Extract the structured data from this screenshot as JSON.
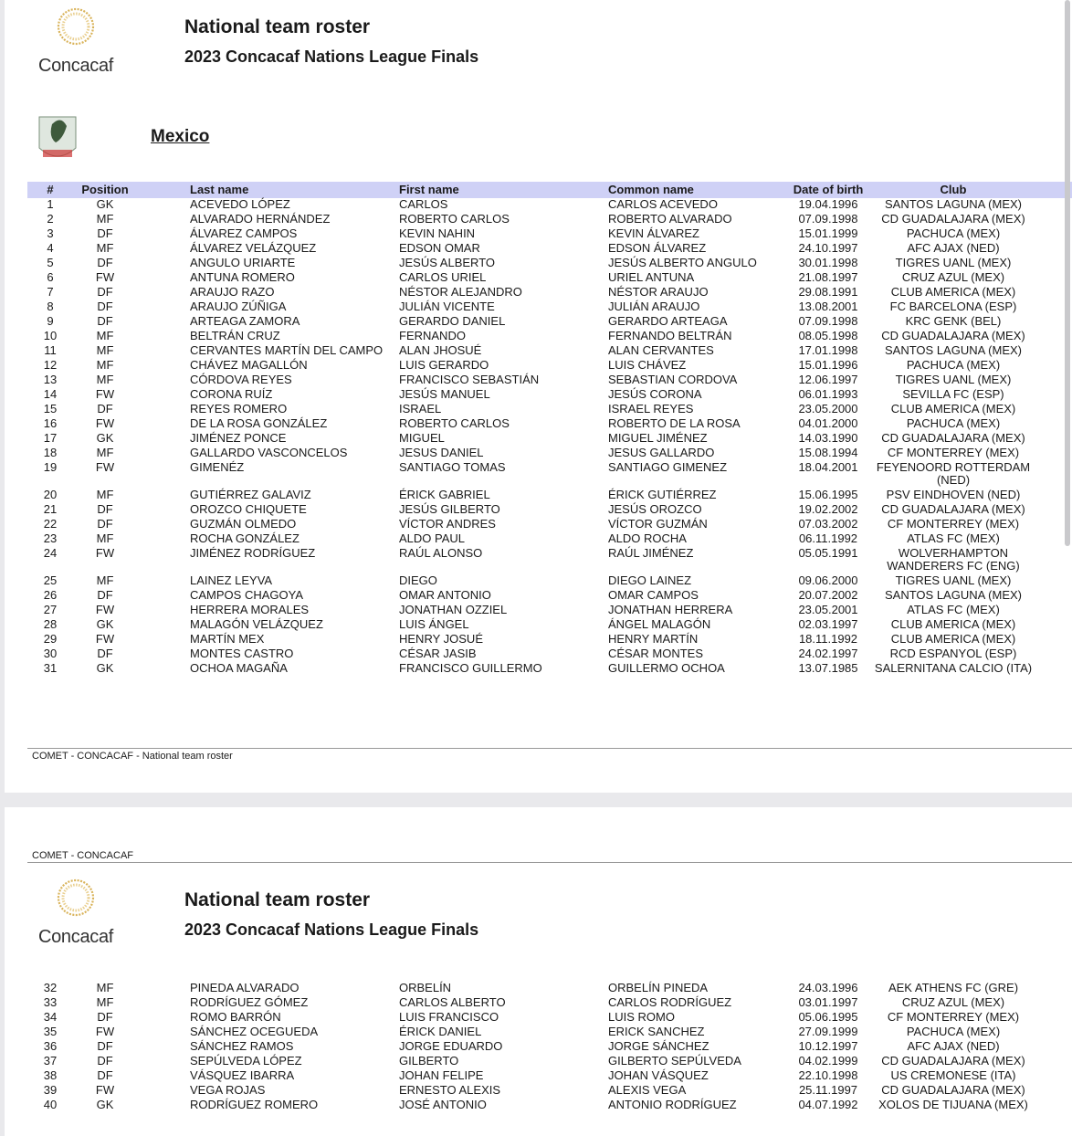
{
  "header": {
    "logo_text": "Concacaf",
    "title": "National team roster",
    "subtitle": "2023 Concacaf Nations League Finals"
  },
  "team": {
    "name": "Mexico"
  },
  "columns": [
    "#",
    "Position",
    "Last name",
    "First name",
    "Common name",
    "Date of birth",
    "Club"
  ],
  "rows_page1": [
    [
      "1",
      "GK",
      "ACEVEDO LÓPEZ",
      "CARLOS",
      "CARLOS ACEVEDO",
      "19.04.1996",
      "SANTOS LAGUNA (MEX)"
    ],
    [
      "2",
      "MF",
      "ALVARADO HERNÁNDEZ",
      "ROBERTO CARLOS",
      "ROBERTO ALVARADO",
      "07.09.1998",
      "CD GUADALAJARA (MEX)"
    ],
    [
      "3",
      "DF",
      "ÁLVAREZ CAMPOS",
      "KEVIN NAHIN",
      "KEVIN ÁLVAREZ",
      "15.01.1999",
      "PACHUCA (MEX)"
    ],
    [
      "4",
      "MF",
      "ÁLVAREZ VELÁZQUEZ",
      "EDSON OMAR",
      "EDSON ÁLVAREZ",
      "24.10.1997",
      "AFC AJAX (NED)"
    ],
    [
      "5",
      "DF",
      "ANGULO URIARTE",
      "JESÚS ALBERTO",
      "JESÚS ALBERTO ANGULO",
      "30.01.1998",
      "TIGRES UANL (MEX)"
    ],
    [
      "6",
      "FW",
      "ANTUNA ROMERO",
      "CARLOS URIEL",
      "URIEL ANTUNA",
      "21.08.1997",
      "CRUZ AZUL (MEX)"
    ],
    [
      "7",
      "DF",
      "ARAUJO RAZO",
      "NÉSTOR ALEJANDRO",
      "NÉSTOR ARAUJO",
      "29.08.1991",
      "CLUB AMERICA (MEX)"
    ],
    [
      "8",
      "DF",
      "ARAUJO ZÚÑIGA",
      "JULIÁN VICENTE",
      "JULIÁN ARAUJO",
      "13.08.2001",
      "FC BARCELONA (ESP)"
    ],
    [
      "9",
      "DF",
      "ARTEAGA ZAMORA",
      "GERARDO DANIEL",
      "GERARDO ARTEAGA",
      "07.09.1998",
      "KRC GENK (BEL)"
    ],
    [
      "10",
      "MF",
      "BELTRÁN CRUZ",
      "FERNANDO",
      "FERNANDO BELTRÁN",
      "08.05.1998",
      "CD GUADALAJARA (MEX)"
    ],
    [
      "11",
      "MF",
      "CERVANTES MARTÍN DEL CAMPO",
      "ALAN JHOSUÉ",
      "ALAN CERVANTES",
      "17.01.1998",
      "SANTOS LAGUNA (MEX)"
    ],
    [
      "12",
      "MF",
      "CHÁVEZ MAGALLÓN",
      "LUIS GERARDO",
      "LUIS CHÁVEZ",
      "15.01.1996",
      "PACHUCA (MEX)"
    ],
    [
      "13",
      "MF",
      "CÓRDOVA REYES",
      "FRANCISCO SEBASTIÁN",
      "SEBASTIAN CORDOVA",
      "12.06.1997",
      "TIGRES UANL (MEX)"
    ],
    [
      "14",
      "FW",
      "CORONA RUÍZ",
      "JESÚS MANUEL",
      "JESÚS CORONA",
      "06.01.1993",
      "SEVILLA FC (ESP)"
    ],
    [
      "15",
      "DF",
      "REYES ROMERO",
      "ISRAEL",
      "ISRAEL REYES",
      "23.05.2000",
      "CLUB AMERICA (MEX)"
    ],
    [
      "16",
      "FW",
      "DE LA ROSA GONZÁLEZ",
      "ROBERTO CARLOS",
      "ROBERTO DE LA ROSA",
      "04.01.2000",
      "PACHUCA (MEX)"
    ],
    [
      "17",
      "GK",
      "JIMÉNEZ PONCE",
      "MIGUEL",
      "MIGUEL JIMÉNEZ",
      "14.03.1990",
      "CD GUADALAJARA (MEX)"
    ],
    [
      "18",
      "MF",
      "GALLARDO VASCONCELOS",
      "JESUS DANIEL",
      "JESUS GALLARDO",
      "15.08.1994",
      "CF MONTERREY (MEX)"
    ],
    [
      "19",
      "FW",
      "GIMENÉZ",
      "SANTIAGO TOMAS",
      "SANTIAGO GIMENEZ",
      "18.04.2001",
      "FEYENOORD ROTTERDAM (NED)"
    ],
    [
      "20",
      "MF",
      "GUTIÉRREZ GALAVIZ",
      "ÉRICK GABRIEL",
      "ÉRICK GUTIÉRREZ",
      "15.06.1995",
      "PSV EINDHOVEN (NED)"
    ],
    [
      "21",
      "DF",
      "OROZCO CHIQUETE",
      "JESÚS GILBERTO",
      "JESÚS OROZCO",
      "19.02.2002",
      "CD GUADALAJARA (MEX)"
    ],
    [
      "22",
      "DF",
      "GUZMÁN OLMEDO",
      "VÍCTOR ANDRES",
      "VÍCTOR GUZMÁN",
      "07.03.2002",
      "CF MONTERREY (MEX)"
    ],
    [
      "23",
      "MF",
      "ROCHA GONZÁLEZ",
      "ALDO PAUL",
      "ALDO ROCHA",
      "06.11.1992",
      "ATLAS FC (MEX)"
    ],
    [
      "24",
      "FW",
      "JIMÉNEZ RODRÍGUEZ",
      "RAÚL ALONSO",
      "RAÚL JIMÉNEZ",
      "05.05.1991",
      "WOLVERHAMPTON WANDERERS FC (ENG)"
    ],
    [
      "25",
      "MF",
      "LAINEZ LEYVA",
      "DIEGO",
      "DIEGO LAINEZ",
      "09.06.2000",
      "TIGRES UANL (MEX)"
    ],
    [
      "26",
      "DF",
      "CAMPOS CHAGOYA",
      "OMAR ANTONIO",
      "OMAR CAMPOS",
      "20.07.2002",
      "SANTOS LAGUNA (MEX)"
    ],
    [
      "27",
      "FW",
      "HERRERA MORALES",
      "JONATHAN OZZIEL",
      "JONATHAN HERRERA",
      "23.05.2001",
      "ATLAS FC (MEX)"
    ],
    [
      "28",
      "GK",
      "MALAGÓN VELÁZQUEZ",
      "LUIS ÁNGEL",
      "ÁNGEL MALAGÓN",
      "02.03.1997",
      "CLUB AMERICA (MEX)"
    ],
    [
      "29",
      "FW",
      "MARTÍN MEX",
      "HENRY JOSUÉ",
      "HENRY MARTÍN",
      "18.11.1992",
      "CLUB AMERICA (MEX)"
    ],
    [
      "30",
      "DF",
      "MONTES CASTRO",
      "CÉSAR JASIB",
      "CÉSAR MONTES",
      "24.02.1997",
      "RCD ESPANYOL (ESP)"
    ],
    [
      "31",
      "GK",
      "OCHOA MAGAÑA",
      "FRANCISCO GUILLERMO",
      "GUILLERMO OCHOA",
      "13.07.1985",
      "SALERNITANA CALCIO (ITA)"
    ]
  ],
  "rows_page2": [
    [
      "32",
      "MF",
      "PINEDA ALVARADO",
      "ORBELÍN",
      "ORBELÍN PINEDA",
      "24.03.1996",
      "AEK ATHENS FC (GRE)"
    ],
    [
      "33",
      "MF",
      "RODRÍGUEZ GÓMEZ",
      "CARLOS ALBERTO",
      "CARLOS RODRÍGUEZ",
      "03.01.1997",
      "CRUZ AZUL (MEX)"
    ],
    [
      "34",
      "DF",
      "ROMO BARRÓN",
      "LUIS FRANCISCO",
      "LUIS ROMO",
      "05.06.1995",
      "CF MONTERREY (MEX)"
    ],
    [
      "35",
      "FW",
      "SÁNCHEZ OCEGUEDA",
      "ÉRICK DANIEL",
      "ERICK SANCHEZ",
      "27.09.1999",
      "PACHUCA (MEX)"
    ],
    [
      "36",
      "DF",
      "SÁNCHEZ RAMOS",
      "JORGE EDUARDO",
      "JORGE SÁNCHEZ",
      "10.12.1997",
      "AFC AJAX (NED)"
    ],
    [
      "37",
      "DF",
      "SEPÚLVEDA LÓPEZ",
      "GILBERTO",
      "GILBERTO SEPÚLVEDA",
      "04.02.1999",
      "CD GUADALAJARA (MEX)"
    ],
    [
      "38",
      "DF",
      "VÁSQUEZ IBARRA",
      "JOHAN FELIPE",
      "JOHAN VÁSQUEZ",
      "22.10.1998",
      "US CREMONESE (ITA)"
    ],
    [
      "39",
      "FW",
      "VEGA ROJAS",
      "ERNESTO ALEXIS",
      "ALEXIS VEGA",
      "25.11.1997",
      "CD GUADALAJARA (MEX)"
    ],
    [
      "40",
      "GK",
      "RODRÍGUEZ ROMERO",
      "JOSÉ ANTONIO",
      "ANTONIO RODRÍGUEZ",
      "04.07.1992",
      "XOLOS DE TIJUANA (MEX)"
    ]
  ],
  "footer": {
    "page1": "COMET - CONCACAF - National team roster",
    "page2_header": "COMET - CONCACAF"
  },
  "colors": {
    "header_band": "#cfd1f6",
    "logo_gold": "#d9b35a"
  }
}
